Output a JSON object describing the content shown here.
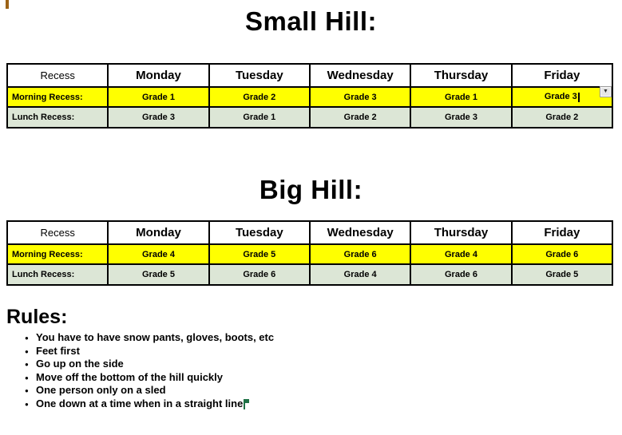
{
  "titles": {
    "small_hill": "Small Hill:",
    "big_hill": "Big Hill:",
    "rules": "Rules:"
  },
  "tables": {
    "columns": [
      "Recess",
      "Monday",
      "Tuesday",
      "Wednesday",
      "Thursday",
      "Friday"
    ],
    "small_hill": {
      "rows": [
        {
          "label": "Morning Recess:",
          "values": [
            "Grade 1",
            "Grade 2",
            "Grade 3",
            "Grade 1",
            "Grade 3"
          ]
        },
        {
          "label": "Lunch Recess:",
          "values": [
            "Grade 3",
            "Grade 1",
            "Grade 2",
            "Grade 3",
            "Grade 2"
          ]
        }
      ]
    },
    "big_hill": {
      "rows": [
        {
          "label": "Morning Recess:",
          "values": [
            "Grade 4",
            "Grade 5",
            "Grade 6",
            "Grade 4",
            "Grade 6"
          ]
        },
        {
          "label": "Lunch Recess:",
          "values": [
            "Grade 5",
            "Grade 6",
            "Grade 4",
            "Grade 6",
            "Grade 5"
          ]
        }
      ]
    }
  },
  "rules": [
    "You have to have snow pants, gloves, boots, etc",
    "Feet first",
    "Go up on the side",
    "Move off the bottom of the hill quickly",
    "One person only on a sled",
    "One down at a time when in a straight line"
  ],
  "icons": {
    "dropdown_arrow": "▼"
  },
  "colors": {
    "morning_row": "#ffff00",
    "lunch_row": "#dce6d6",
    "collab_cursor_orange": "#9c6216",
    "collab_cursor_green": "#1e7145"
  }
}
